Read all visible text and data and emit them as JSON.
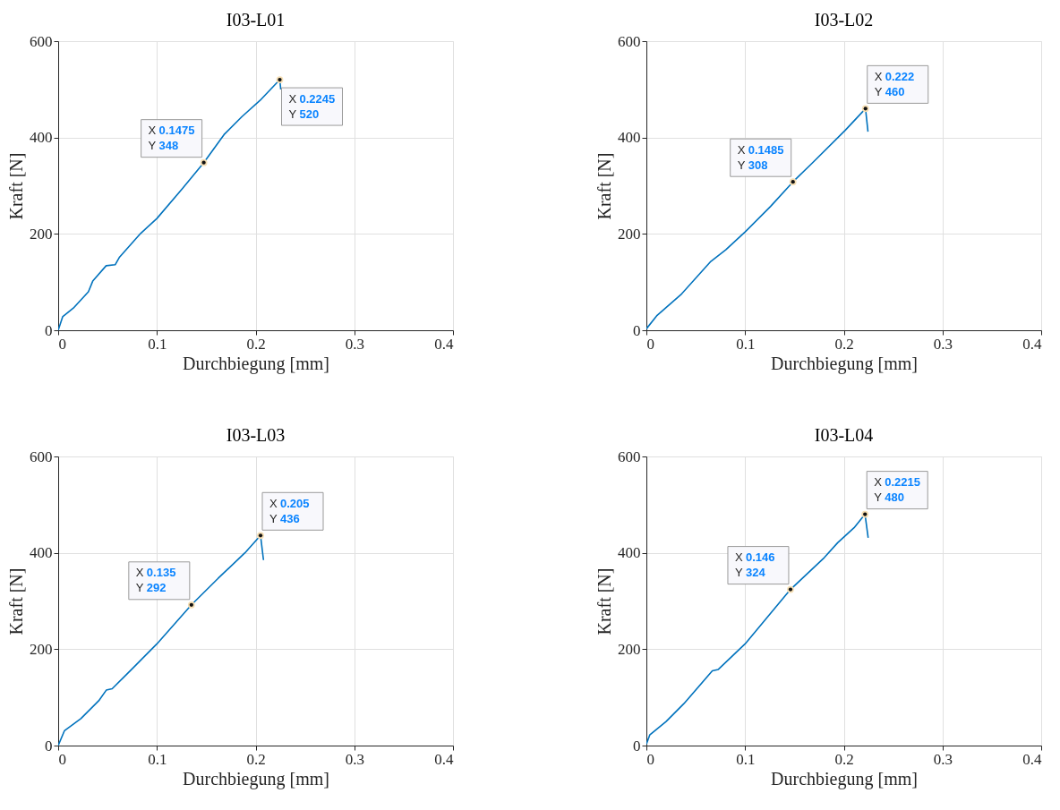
{
  "chart_data": [
    {
      "type": "line",
      "title": "I03-L01",
      "xlabel": "Durchbiegung [mm]",
      "ylabel": "Kraft [N]",
      "xlim": [
        0,
        0.4
      ],
      "ylim": [
        0,
        600
      ],
      "xticks": [
        0,
        0.1,
        0.2,
        0.3,
        0.4
      ],
      "yticks": [
        0,
        200,
        400,
        600
      ],
      "grid": true,
      "series": [
        {
          "color": "#0072bd",
          "x": [
            0,
            0.0045,
            0.0154,
            0.0306,
            0.035,
            0.0486,
            0.0577,
            0.0622,
            0.0835,
            0.1,
            0.1258,
            0.1475,
            0.168,
            0.186,
            0.2045,
            0.2245,
            0.2255
          ],
          "values": [
            0,
            28,
            46,
            80,
            102,
            134,
            136,
            152,
            201,
            232,
            294,
            348,
            406,
            443,
            477,
            520,
            500
          ]
        }
      ],
      "annotations": [
        {
          "text": "X 0.1475\nY 348",
          "x": 0.1475,
          "y": 348
        },
        {
          "text": "X 0.2245\nY 520",
          "x": 0.2245,
          "y": 520
        }
      ]
    },
    {
      "type": "line",
      "title": "I03-L02",
      "xlabel": "Durchbiegung [mm]",
      "ylabel": "Kraft [N]",
      "xlim": [
        0,
        0.4
      ],
      "ylim": [
        0,
        600
      ],
      "xticks": [
        0,
        0.1,
        0.2,
        0.3,
        0.4
      ],
      "yticks": [
        0,
        200,
        400,
        600
      ],
      "grid": true,
      "series": [
        {
          "color": "#0072bd",
          "x": [
            0,
            0.0109,
            0.035,
            0.0653,
            0.0804,
            0.1,
            0.1258,
            0.1485,
            0.168,
            0.2014,
            0.222,
            0.2245
          ],
          "values": [
            3,
            31,
            74,
            143,
            167,
            204,
            257,
            308,
            347,
            415,
            460,
            412
          ]
        }
      ],
      "annotations": [
        {
          "text": "X 0.1485\nY 308",
          "x": 0.1485,
          "y": 308
        },
        {
          "text": "X 0.222\nY 460",
          "x": 0.222,
          "y": 460
        }
      ]
    },
    {
      "type": "line",
      "title": "I03-L03",
      "xlabel": "Durchbiegung [mm]",
      "ylabel": "Kraft [N]",
      "xlim": [
        0,
        0.4
      ],
      "ylim": [
        0,
        600
      ],
      "xticks": [
        0,
        0.1,
        0.2,
        0.3,
        0.4
      ],
      "yticks": [
        0,
        200,
        400,
        600
      ],
      "grid": true,
      "series": [
        {
          "color": "#0072bd",
          "x": [
            0,
            0.0064,
            0.023,
            0.0411,
            0.0487,
            0.0547,
            0.0744,
            0.1,
            0.135,
            0.162,
            0.1892,
            0.205,
            0.208
          ],
          "values": [
            0,
            31,
            56,
            93,
            115,
            118,
            158,
            211,
            292,
            347,
            400,
            436,
            385
          ]
        }
      ],
      "annotations": [
        {
          "text": "X 0.135\nY 292",
          "x": 0.135,
          "y": 292
        },
        {
          "text": "X 0.205\nY 436",
          "x": 0.205,
          "y": 436
        }
      ]
    },
    {
      "type": "line",
      "title": "I03-L04",
      "xlabel": "Durchbiegung [mm]",
      "ylabel": "Kraft [N]",
      "xlim": [
        0,
        0.4
      ],
      "ylim": [
        0,
        600
      ],
      "xticks": [
        0,
        0.1,
        0.2,
        0.3,
        0.4
      ],
      "yticks": [
        0,
        200,
        400,
        600
      ],
      "grid": true,
      "series": [
        {
          "color": "#0072bd",
          "x": [
            0,
            0.0034,
            0.02,
            0.038,
            0.0668,
            0.0729,
            0.1,
            0.146,
            0.1802,
            0.1938,
            0.2104,
            0.2215,
            0.2247
          ],
          "values": [
            3,
            22,
            50,
            87,
            155,
            158,
            211,
            324,
            390,
            421,
            452,
            480,
            431
          ]
        }
      ],
      "annotations": [
        {
          "text": "X 0.146\nY 324",
          "x": 0.146,
          "y": 324
        },
        {
          "text": "X 0.2215\nY 480",
          "x": 0.2215,
          "y": 480
        }
      ]
    }
  ]
}
